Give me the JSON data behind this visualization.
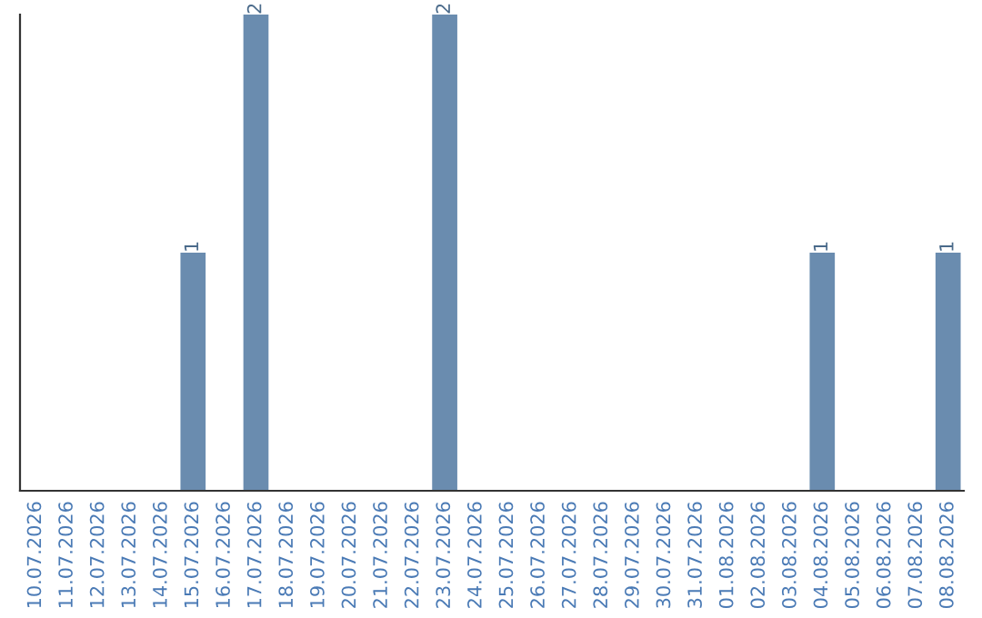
{
  "chart_data": {
    "type": "bar",
    "categories": [
      "10.07.2026",
      "11.07.2026",
      "12.07.2026",
      "13.07.2026",
      "14.07.2026",
      "15.07.2026",
      "16.07.2026",
      "17.07.2026",
      "18.07.2026",
      "19.07.2026",
      "20.07.2026",
      "21.07.2026",
      "22.07.2026",
      "23.07.2026",
      "24.07.2026",
      "25.07.2026",
      "26.07.2026",
      "27.07.2026",
      "28.07.2026",
      "29.07.2026",
      "30.07.2026",
      "31.07.2026",
      "01.08.2026",
      "02.08.2026",
      "03.08.2026",
      "04.08.2026",
      "05.08.2026",
      "06.08.2026",
      "07.08.2026",
      "08.08.2026"
    ],
    "values": [
      0,
      0,
      0,
      0,
      0,
      1,
      0,
      2,
      0,
      0,
      0,
      0,
      0,
      2,
      0,
      0,
      0,
      0,
      0,
      0,
      0,
      0,
      0,
      0,
      0,
      1,
      0,
      0,
      0,
      1
    ],
    "value_labels": [
      null,
      null,
      null,
      null,
      null,
      "1",
      null,
      "2",
      null,
      null,
      null,
      null,
      null,
      "2",
      null,
      null,
      null,
      null,
      null,
      null,
      null,
      null,
      null,
      null,
      null,
      "1",
      null,
      null,
      null,
      "1"
    ],
    "color": "#6a8caf",
    "tick_labels": "x",
    "grid": false,
    "legend": false
  }
}
